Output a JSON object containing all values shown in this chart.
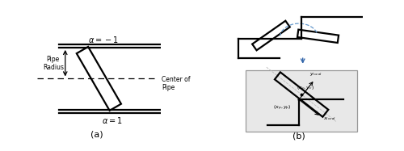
{
  "fig_width": 5.0,
  "fig_height": 1.87,
  "dpi": 100,
  "bg_color": "#ffffff",
  "label_a": "(a)",
  "label_b": "(b)",
  "alpha_neg1": "α = −1",
  "alpha_pos1": "α = 1",
  "pipe_radius_label": "Pipe\nRadius",
  "center_pipe_label": "Center of\nPipe"
}
